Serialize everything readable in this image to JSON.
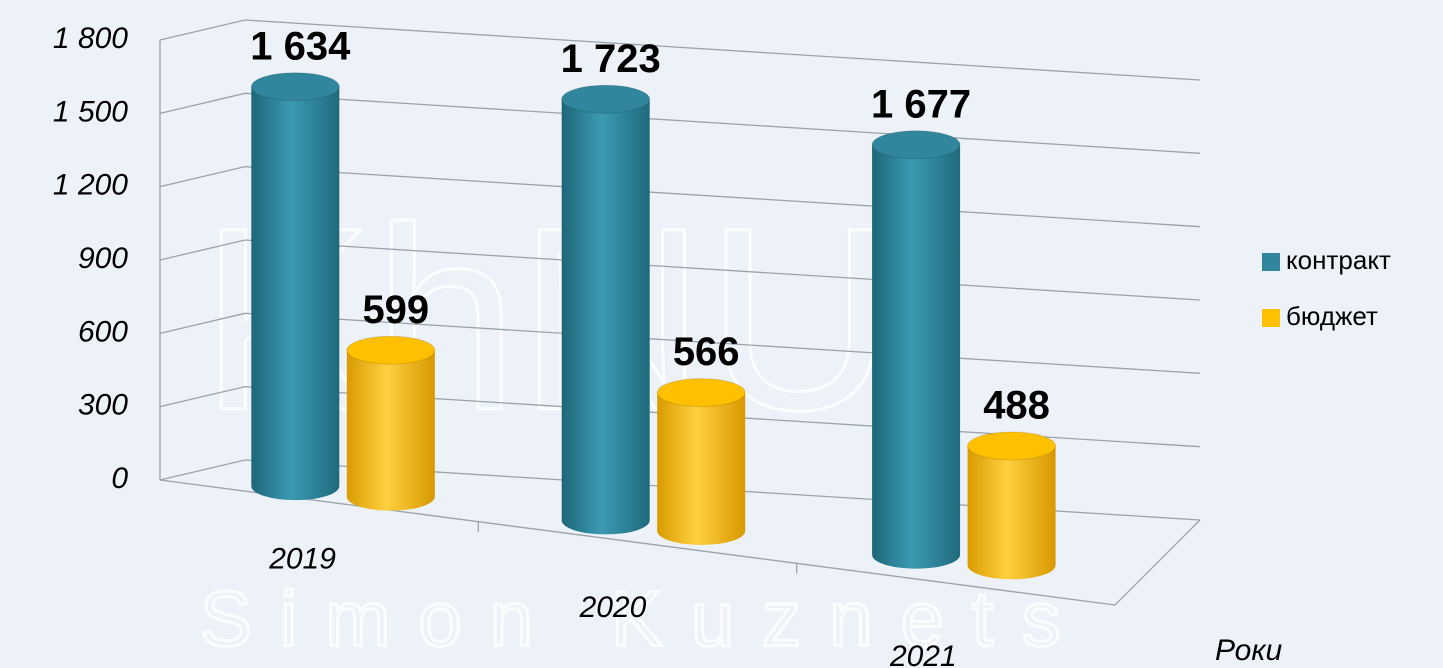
{
  "chart_data": {
    "type": "bar3d",
    "watermark": [
      "KhNU",
      "Simon Kuznets"
    ],
    "x_label": "Роки",
    "categories": [
      "2019",
      "2020",
      "2021"
    ],
    "series": [
      {
        "name": "контракт",
        "color": "#31859c",
        "values": [
          1634,
          1723,
          1677
        ],
        "value_labels": [
          "1 634",
          "1 723",
          "1 677"
        ]
      },
      {
        "name": "бюджет",
        "color": "#ffc000",
        "values": [
          599,
          566,
          488
        ],
        "value_labels": [
          "599",
          "566",
          "488"
        ]
      }
    ],
    "ylim": [
      0,
      1800
    ],
    "yticks": [
      0,
      300,
      600,
      900,
      {
        "value": 1200,
        "label": "1 200"
      },
      {
        "value": 1500,
        "label": "1 500"
      },
      {
        "value": 1800,
        "label": "1 800"
      }
    ],
    "grid": true,
    "legend": "right"
  }
}
